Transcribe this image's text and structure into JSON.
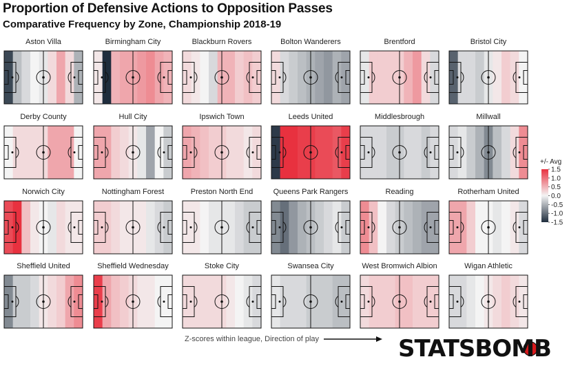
{
  "title": "Proportion of Defensive Actions to Opposition Passes",
  "subtitle": "Comparative Frequency by Zone, Championship 2018-19",
  "footnote": "Z-scores within league, Direction of play",
  "brand": "STATSBOMB",
  "legend": {
    "title": "+/- Avg",
    "ticks": [
      1.5,
      1.0,
      0.5,
      0.0,
      -0.5,
      -1.0,
      -1.5
    ],
    "tick_labels": [
      "1.5",
      "1.0",
      "0.5",
      "0.0",
      "-0.5",
      "-1.0",
      "-1.5"
    ]
  },
  "colors": {
    "high": "#e8313f",
    "mid": "#f4f4f4",
    "low": "#1f2d3d",
    "pitch_line": "#111111"
  },
  "chart_data": {
    "type": "heatmap",
    "zones_per_pitch": 9,
    "color_range": [
      -1.5,
      1.5
    ],
    "teams": [
      {
        "name": "Aston Villa",
        "values": [
          -1.3,
          -0.4,
          -0.2,
          0.0,
          -0.1,
          0.2,
          0.6,
          0.2,
          -0.5
        ]
      },
      {
        "name": "Birmingham City",
        "values": [
          0.1,
          -1.6,
          0.5,
          0.6,
          0.6,
          0.7,
          0.8,
          0.6,
          0.5
        ]
      },
      {
        "name": "Blackburn Rovers",
        "values": [
          0.2,
          0.1,
          0.0,
          -0.2,
          0.5,
          0.5,
          0.3,
          0.4,
          0.3
        ]
      },
      {
        "name": "Bolton Wanderers",
        "values": [
          0.2,
          -0.2,
          -0.3,
          -0.4,
          -0.5,
          -0.6,
          -0.7,
          -0.5,
          -0.6
        ]
      },
      {
        "name": "Brentford",
        "values": [
          -0.1,
          0.3,
          0.3,
          0.3,
          0.3,
          0.5,
          0.7,
          0.2,
          -0.2
        ]
      },
      {
        "name": "Bristol City",
        "values": [
          -1.1,
          -0.2,
          -0.2,
          -0.3,
          -0.1,
          0.1,
          0.3,
          0.2,
          0.0
        ]
      },
      {
        "name": "Derby County",
        "values": [
          0.0,
          0.2,
          0.2,
          0.2,
          0.2,
          0.6,
          0.6,
          0.6,
          0.0
        ]
      },
      {
        "name": "Hull City",
        "values": [
          0.6,
          0.6,
          0.3,
          0.2,
          0.1,
          -0.1,
          -0.6,
          0.0,
          -0.3
        ]
      },
      {
        "name": "Ipswich Town",
        "values": [
          0.6,
          0.5,
          0.4,
          0.3,
          0.3,
          0.2,
          0.2,
          0.1,
          0.2
        ]
      },
      {
        "name": "Leeds United",
        "values": [
          -1.4,
          1.5,
          1.5,
          1.4,
          1.4,
          1.3,
          1.3,
          1.2,
          1.4
        ]
      },
      {
        "name": "Middlesbrough",
        "values": [
          -0.2,
          -0.2,
          -0.2,
          -0.3,
          -0.3,
          -0.2,
          -0.2,
          -0.3,
          -0.2
        ]
      },
      {
        "name": "Millwall",
        "values": [
          -0.2,
          -0.1,
          -0.3,
          -0.5,
          -0.8,
          -0.4,
          -0.2,
          0.2,
          0.8
        ]
      },
      {
        "name": "Norwich City",
        "values": [
          1.3,
          1.5,
          0.4,
          0.1,
          0.0,
          -0.1,
          0.2,
          0.1,
          0.1
        ]
      },
      {
        "name": "Nottingham Forest",
        "values": [
          0.3,
          0.3,
          0.2,
          0.1,
          0.1,
          0.1,
          -0.1,
          -0.2,
          -0.3
        ]
      },
      {
        "name": "Preston North End",
        "values": [
          0.1,
          0.1,
          0.0,
          -0.1,
          -0.1,
          -0.1,
          -0.2,
          -0.3,
          -0.3
        ]
      },
      {
        "name": "Queens Park Rangers",
        "values": [
          -0.8,
          -1.0,
          -0.7,
          -0.5,
          -0.4,
          -0.3,
          -0.2,
          -0.1,
          -0.3
        ]
      },
      {
        "name": "Reading",
        "values": [
          0.8,
          0.4,
          0.0,
          -0.2,
          -0.3,
          -0.4,
          -0.5,
          -0.6,
          -0.6
        ]
      },
      {
        "name": "Rotherham United",
        "values": [
          0.6,
          0.6,
          0.3,
          0.0,
          0.0,
          -0.1,
          0.0,
          0.1,
          -0.2
        ]
      },
      {
        "name": "Sheffield United",
        "values": [
          -0.8,
          -0.3,
          -0.3,
          -0.2,
          0.1,
          0.2,
          0.3,
          0.6,
          0.8
        ]
      },
      {
        "name": "Sheffield Wednesday",
        "values": [
          1.4,
          0.6,
          0.4,
          0.3,
          0.2,
          0.1,
          0.1,
          0.0,
          0.0
        ]
      },
      {
        "name": "Stoke City",
        "values": [
          0.2,
          0.2,
          0.2,
          0.2,
          0.2,
          0.1,
          0.0,
          -0.1,
          -0.2
        ]
      },
      {
        "name": "Swansea City",
        "values": [
          -0.1,
          -0.2,
          -0.2,
          -0.2,
          -0.3,
          -0.3,
          -0.3,
          -0.4,
          -0.4
        ]
      },
      {
        "name": "West Bromwich Albion",
        "values": [
          0.2,
          0.3,
          0.3,
          0.3,
          0.4,
          0.4,
          0.3,
          0.3,
          0.3
        ]
      },
      {
        "name": "Wigan Athletic",
        "values": [
          -0.2,
          -0.2,
          -0.1,
          0.0,
          0.1,
          0.2,
          0.3,
          0.2,
          0.1
        ]
      }
    ]
  }
}
